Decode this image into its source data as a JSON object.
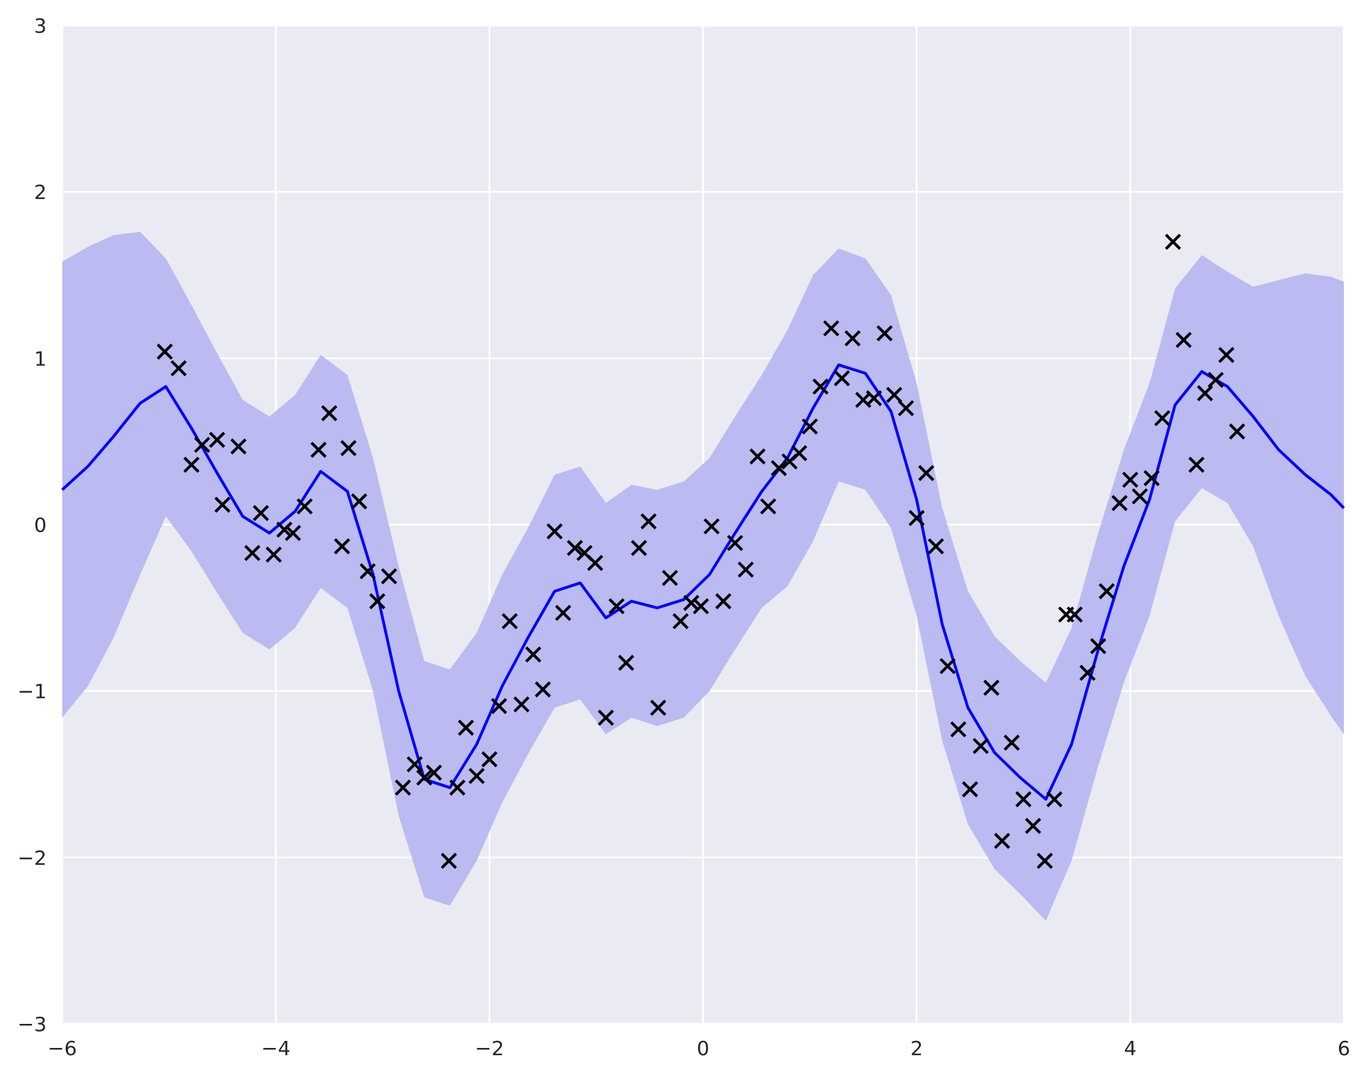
{
  "chart_data": {
    "type": "line",
    "title": "",
    "xlabel": "",
    "ylabel": "",
    "xlim": [
      -6,
      6
    ],
    "ylim": [
      -3,
      3
    ],
    "x_ticks": [
      -6,
      -4,
      -2,
      0,
      2,
      4,
      6
    ],
    "y_ticks": [
      -3,
      -2,
      -1,
      0,
      1,
      2,
      3
    ],
    "x_tick_labels": [
      "−6",
      "−4",
      "−2",
      "0",
      "2",
      "4",
      "6"
    ],
    "y_tick_labels": [
      "−3",
      "−2",
      "−1",
      "0",
      "1",
      "2",
      "3"
    ],
    "grid": true,
    "colors": {
      "background": "#eaeaf2",
      "grid": "#ffffff",
      "line": "#0000ff",
      "band": "#bbbbf2",
      "markers": "#000000"
    },
    "mean_line": {
      "x": [
        -6,
        -5.76,
        -5.52,
        -5.27,
        -5.03,
        -4.79,
        -4.55,
        -4.31,
        -4.06,
        -3.82,
        -3.58,
        -3.33,
        -3.09,
        -2.85,
        -2.61,
        -2.37,
        -2.12,
        -1.88,
        -1.64,
        -1.39,
        -1.15,
        -0.91,
        -0.67,
        -0.43,
        -0.18,
        0.06,
        0.3,
        0.55,
        0.79,
        1.03,
        1.27,
        1.52,
        1.76,
        2.0,
        2.24,
        2.48,
        2.73,
        2.97,
        3.21,
        3.45,
        3.7,
        3.94,
        4.18,
        4.42,
        4.67,
        4.91,
        5.15,
        5.39,
        5.64,
        5.88,
        6.0
      ],
      "y": [
        0.21,
        0.35,
        0.53,
        0.73,
        0.83,
        0.58,
        0.31,
        0.05,
        -0.05,
        0.08,
        0.32,
        0.2,
        -0.3,
        -1.0,
        -1.53,
        -1.58,
        -1.32,
        -0.97,
        -0.68,
        -0.4,
        -0.35,
        -0.56,
        -0.46,
        -0.5,
        -0.45,
        -0.3,
        -0.05,
        0.2,
        0.4,
        0.7,
        0.96,
        0.91,
        0.68,
        0.15,
        -0.6,
        -1.1,
        -1.37,
        -1.52,
        -1.65,
        -1.32,
        -0.75,
        -0.25,
        0.15,
        0.72,
        0.92,
        0.83,
        0.65,
        0.45,
        0.3,
        0.18,
        0.1
      ]
    },
    "confidence_band": {
      "x": [
        -6,
        -5.76,
        -5.52,
        -5.27,
        -5.03,
        -4.79,
        -4.55,
        -4.31,
        -4.06,
        -3.82,
        -3.58,
        -3.33,
        -3.09,
        -2.85,
        -2.61,
        -2.37,
        -2.12,
        -1.88,
        -1.64,
        -1.39,
        -1.15,
        -0.91,
        -0.67,
        -0.43,
        -0.18,
        0.06,
        0.3,
        0.55,
        0.79,
        1.03,
        1.27,
        1.52,
        1.76,
        2.0,
        2.24,
        2.48,
        2.73,
        2.97,
        3.21,
        3.45,
        3.7,
        3.94,
        4.18,
        4.42,
        4.67,
        4.91,
        5.15,
        5.39,
        5.64,
        5.88,
        6.0
      ],
      "upper": [
        1.58,
        1.67,
        1.74,
        1.76,
        1.6,
        1.32,
        1.03,
        0.75,
        0.65,
        0.78,
        1.02,
        0.9,
        0.4,
        -0.25,
        -0.82,
        -0.87,
        -0.65,
        -0.3,
        -0.02,
        0.3,
        0.35,
        0.13,
        0.24,
        0.21,
        0.26,
        0.4,
        0.65,
        0.9,
        1.17,
        1.5,
        1.66,
        1.6,
        1.38,
        0.85,
        0.1,
        -0.4,
        -0.67,
        -0.82,
        -0.95,
        -0.62,
        -0.05,
        0.45,
        0.85,
        1.42,
        1.62,
        1.52,
        1.43,
        1.47,
        1.51,
        1.49,
        1.46
      ],
      "lower": [
        -1.16,
        -0.97,
        -0.68,
        -0.3,
        0.05,
        -0.16,
        -0.41,
        -0.65,
        -0.75,
        -0.62,
        -0.38,
        -0.5,
        -1.0,
        -1.75,
        -2.24,
        -2.29,
        -2.02,
        -1.67,
        -1.38,
        -1.1,
        -1.05,
        -1.26,
        -1.16,
        -1.21,
        -1.16,
        -1.0,
        -0.75,
        -0.5,
        -0.37,
        -0.1,
        0.26,
        0.21,
        -0.02,
        -0.55,
        -1.3,
        -1.8,
        -2.07,
        -2.22,
        -2.38,
        -2.02,
        -1.45,
        -0.95,
        -0.55,
        0.02,
        0.22,
        0.13,
        -0.13,
        -0.55,
        -0.91,
        -1.15,
        -1.26
      ]
    },
    "observations": {
      "x": [
        -5.04,
        -4.91,
        -4.79,
        -4.69,
        -4.55,
        -4.5,
        -4.35,
        -4.22,
        -4.14,
        -4.02,
        -3.92,
        -3.84,
        -3.73,
        -3.6,
        -3.5,
        -3.38,
        -3.32,
        -3.22,
        -3.14,
        -3.05,
        -2.94,
        -2.81,
        -2.7,
        -2.61,
        -2.52,
        -2.38,
        -2.3,
        -2.22,
        -2.12,
        -2.0,
        -1.91,
        -1.81,
        -1.7,
        -1.59,
        -1.5,
        -1.39,
        -1.31,
        -1.2,
        -1.11,
        -1.01,
        -0.91,
        -0.81,
        -0.72,
        -0.6,
        -0.51,
        -0.42,
        -0.31,
        -0.21,
        -0.11,
        -0.02,
        0.08,
        0.19,
        0.3,
        0.4,
        0.51,
        0.61,
        0.71,
        0.81,
        0.9,
        1.0,
        1.1,
        1.2,
        1.3,
        1.4,
        1.5,
        1.6,
        1.7,
        1.79,
        1.9,
        2.0,
        2.09,
        2.18,
        2.29,
        2.39,
        2.5,
        2.6,
        2.7,
        2.8,
        2.89,
        3.0,
        3.09,
        3.2,
        3.29,
        3.4,
        3.48,
        3.6,
        3.7,
        3.78,
        3.9,
        4.0,
        4.09,
        4.2,
        4.3,
        4.4,
        4.5,
        4.62,
        4.7,
        4.8,
        4.9,
        5.0
      ],
      "y": [
        1.04,
        0.94,
        0.36,
        0.48,
        0.51,
        0.12,
        0.47,
        -0.17,
        0.07,
        -0.18,
        -0.03,
        -0.05,
        0.11,
        0.45,
        0.67,
        -0.13,
        0.46,
        0.14,
        -0.28,
        -0.46,
        -0.31,
        -1.58,
        -1.44,
        -1.52,
        -1.49,
        -2.02,
        -1.58,
        -1.22,
        -1.51,
        -1.41,
        -1.09,
        -0.58,
        -1.08,
        -0.78,
        -0.99,
        -0.04,
        -0.53,
        -0.14,
        -0.17,
        -0.23,
        -1.16,
        -0.49,
        -0.83,
        -0.14,
        0.02,
        -1.1,
        -0.32,
        -0.58,
        -0.47,
        -0.49,
        -0.01,
        -0.46,
        -0.11,
        -0.27,
        0.41,
        0.11,
        0.34,
        0.38,
        0.43,
        0.59,
        0.83,
        1.18,
        0.88,
        1.12,
        0.75,
        0.76,
        1.15,
        0.78,
        0.7,
        0.04,
        0.31,
        -0.13,
        -0.85,
        -1.23,
        -1.59,
        -1.33,
        -0.98,
        -1.9,
        -1.31,
        -1.65,
        -1.81,
        -2.02,
        -1.65,
        -0.54,
        -0.54,
        -0.89,
        -0.73,
        -0.4,
        0.13,
        0.27,
        0.17,
        0.28,
        0.64,
        1.7,
        1.11,
        0.36,
        0.79,
        0.87,
        1.02,
        0.56
      ]
    }
  }
}
